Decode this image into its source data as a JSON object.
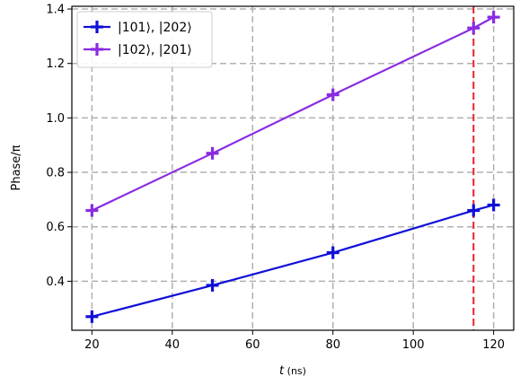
{
  "chart_data": {
    "type": "line",
    "xlabel_italic": "t",
    "xlabel_rest": " (ns)",
    "ylabel": "Phase/π",
    "xlim": [
      15,
      125
    ],
    "ylim": [
      0.22,
      1.41
    ],
    "xticks": [
      20,
      40,
      60,
      80,
      100,
      120
    ],
    "yticks": [
      0.4,
      0.6,
      0.8,
      1.0,
      1.2,
      1.4
    ],
    "xtick_labels": [
      "20",
      "40",
      "60",
      "80",
      "100",
      "120"
    ],
    "ytick_labels": [
      "0.4",
      "0.6",
      "0.8",
      "1.0",
      "1.2",
      "1.4"
    ],
    "grid": true,
    "grid_style": "dashed",
    "legend_position": "top-left",
    "vline": {
      "x": 115,
      "color": "#e8202a",
      "style": "dashed"
    },
    "series": [
      {
        "name": "|101⟩, |202⟩",
        "color": "#1010d8",
        "x": [
          20,
          50,
          80,
          115,
          120
        ],
        "y": [
          0.27,
          0.385,
          0.505,
          0.66,
          0.68
        ]
      },
      {
        "name": "|102⟩, |201⟩",
        "color": "#8a2be2",
        "x": [
          20,
          50,
          80,
          115,
          120
        ],
        "y": [
          0.66,
          0.87,
          1.085,
          1.33,
          1.37
        ]
      }
    ]
  }
}
